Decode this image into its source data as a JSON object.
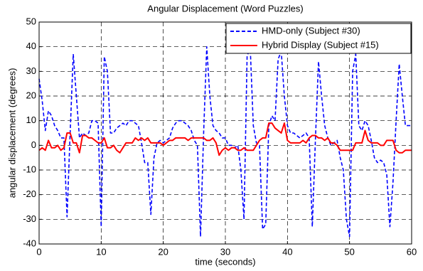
{
  "chart_data": {
    "type": "line",
    "title": "Angular Displacement (Word Puzzles)",
    "xlabel": "time (seconds)",
    "ylabel": "angular displacement (degrees)",
    "x": [
      0,
      0.5,
      1,
      1.5,
      2,
      2.5,
      3,
      3.5,
      4,
      4.5,
      5,
      5.5,
      6,
      6.5,
      7,
      7.5,
      8,
      8.5,
      9,
      9.5,
      10,
      10.5,
      11,
      11.5,
      12,
      12.5,
      13,
      13.5,
      14,
      14.5,
      15,
      15.5,
      16,
      16.5,
      17,
      17.5,
      18,
      18.5,
      19,
      19.5,
      20,
      20.5,
      21,
      21.5,
      22,
      22.5,
      23,
      23.5,
      24,
      24.5,
      25,
      25.5,
      26,
      26.5,
      27,
      27.5,
      28,
      28.5,
      29,
      29.5,
      30,
      30.5,
      31,
      31.5,
      32,
      32.5,
      33,
      33.5,
      34,
      34.5,
      35,
      35.5,
      36,
      36.5,
      37,
      37.5,
      38,
      38.5,
      39,
      39.5,
      40,
      40.5,
      41,
      41.5,
      42,
      42.5,
      43,
      43.5,
      44,
      44.5,
      45,
      45.5,
      46,
      46.5,
      47,
      47.5,
      48,
      48.5,
      49,
      49.5,
      50,
      50.5,
      51,
      51.5,
      52,
      52.5,
      53,
      53.5,
      54,
      54.5,
      55,
      55.5,
      56,
      56.5,
      57,
      57.5,
      58,
      58.5,
      59,
      59.5,
      60
    ],
    "series": [
      {
        "name": "HMD-only (Subject #30)",
        "color": "#0000ff",
        "dashed": true,
        "values": [
          27,
          18,
          6,
          14,
          12,
          8,
          6,
          3,
          3,
          -29,
          5,
          37,
          20,
          3,
          5,
          4,
          5,
          10,
          10,
          9,
          -33,
          36,
          30,
          5,
          5,
          7,
          8,
          9,
          8,
          10,
          10,
          9,
          8,
          1,
          -7,
          -7,
          -28,
          -5,
          1,
          2,
          1,
          2,
          3,
          7,
          9,
          10,
          10,
          9,
          8,
          6,
          2,
          0,
          -37,
          5,
          40,
          20,
          8,
          6,
          5,
          3,
          3,
          0,
          0,
          -1,
          0,
          -10,
          -30,
          36,
          40,
          8,
          1,
          0,
          -34,
          -32,
          8,
          12,
          10,
          35,
          38,
          20,
          8,
          5,
          5,
          4,
          3,
          4,
          5,
          3,
          -33,
          2,
          34,
          20,
          8,
          3,
          0,
          1,
          2,
          -5,
          -10,
          -30,
          -37,
          30,
          37,
          8,
          6,
          10,
          8,
          2,
          -5,
          -7,
          -6,
          -7,
          -12,
          -33,
          -15,
          10,
          33,
          20,
          8,
          8,
          8
        ]
      },
      {
        "name": "Hybrid Display (Subject #15)",
        "color": "#ff0000",
        "dashed": false,
        "values": [
          -2,
          -1,
          -2,
          2,
          -1,
          -1,
          0,
          -2,
          -1,
          5,
          5,
          1,
          1,
          -3,
          4,
          4,
          3,
          3,
          2,
          1,
          1,
          3,
          -1,
          -1,
          0,
          -2,
          -3,
          -1,
          1,
          1,
          1,
          3,
          2,
          3,
          2,
          3,
          1,
          1,
          1,
          1,
          0,
          1,
          2,
          2,
          3,
          3,
          3,
          3,
          2,
          3,
          3,
          3,
          3,
          3,
          2,
          2,
          3,
          1,
          -4,
          -2,
          -1,
          -2,
          -1,
          -1,
          -2,
          -2,
          -1,
          -2,
          -2,
          -2,
          0,
          2,
          3,
          3,
          9,
          9,
          7,
          6,
          5,
          9,
          2,
          1,
          1,
          1,
          1,
          2,
          1,
          3,
          4,
          4,
          3,
          3,
          2,
          3,
          1,
          1,
          0,
          -2,
          -2,
          -2,
          -2,
          -2,
          1,
          1,
          1,
          6,
          2,
          1,
          1,
          1,
          0,
          0,
          2,
          2,
          2,
          -2,
          -3,
          -3,
          -2,
          -2,
          -2
        ]
      }
    ],
    "xlim": [
      0,
      60
    ],
    "xticks": [
      0,
      10,
      20,
      30,
      40,
      50,
      60
    ],
    "ylim": [
      -40,
      50
    ],
    "yticks": [
      -40,
      -30,
      -20,
      -10,
      0,
      10,
      20,
      30,
      40,
      50
    ],
    "grid": true,
    "legend": "upper right"
  }
}
